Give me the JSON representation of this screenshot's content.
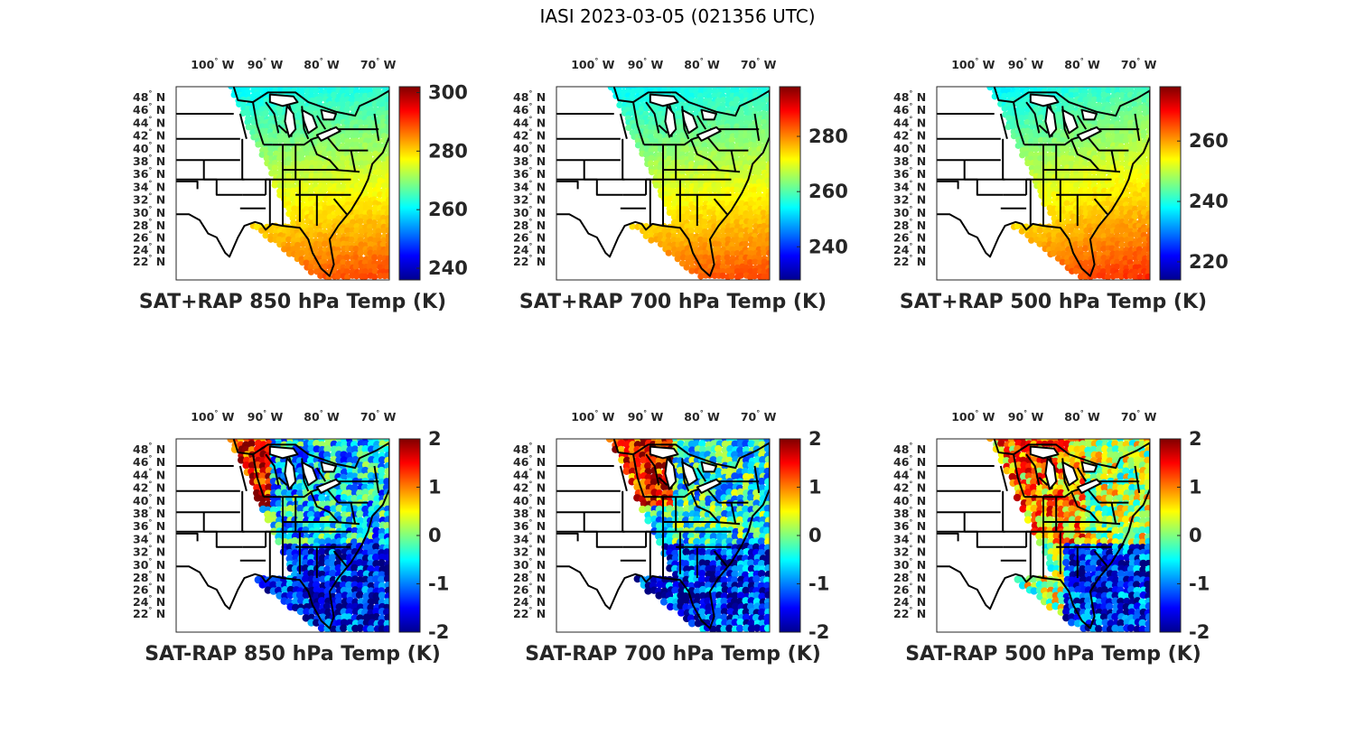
{
  "figure": {
    "title": "IASI 2023-03-05 (021356 UTC)"
  },
  "map_axes": {
    "lon_ticks": [
      "100",
      "90",
      "80",
      "70"
    ],
    "lon_hemisphere": "W",
    "lat_ticks": [
      "48",
      "46",
      "44",
      "42",
      "40",
      "38",
      "36",
      "34",
      "32",
      "30",
      "28",
      "26",
      "24",
      "22"
    ],
    "lat_hemisphere": "N",
    "degree_mark": "°"
  },
  "colormap": "jet",
  "panels": [
    {
      "title": "SAT+RAP 850 hPa Temp (K)",
      "field": "temperature",
      "clim": [
        236,
        302
      ],
      "cbar_ticks": [
        "300",
        "280",
        "260",
        "240"
      ]
    },
    {
      "title": "SAT+RAP 700 hPa Temp (K)",
      "field": "temperature",
      "clim": [
        228,
        298
      ],
      "cbar_ticks": [
        "280",
        "260",
        "240"
      ]
    },
    {
      "title": "SAT+RAP 500 hPa Temp (K)",
      "field": "temperature",
      "clim": [
        214,
        278
      ],
      "cbar_ticks": [
        "260",
        "240",
        "220"
      ]
    },
    {
      "title": "SAT-RAP 850 hPa Temp (K)",
      "field": "difference",
      "clim": [
        -2,
        2
      ],
      "cbar_ticks": [
        "2",
        "1",
        "0",
        "-1",
        "-2"
      ]
    },
    {
      "title": "SAT-RAP 700 hPa Temp (K)",
      "field": "difference",
      "clim": [
        -2,
        2
      ],
      "cbar_ticks": [
        "2",
        "1",
        "0",
        "-1",
        "-2"
      ]
    },
    {
      "title": "SAT-RAP 500 hPa Temp (K)",
      "field": "difference",
      "clim": [
        -2,
        2
      ],
      "cbar_ticks": [
        "2",
        "1",
        "0",
        "-1",
        "-2"
      ]
    }
  ]
}
